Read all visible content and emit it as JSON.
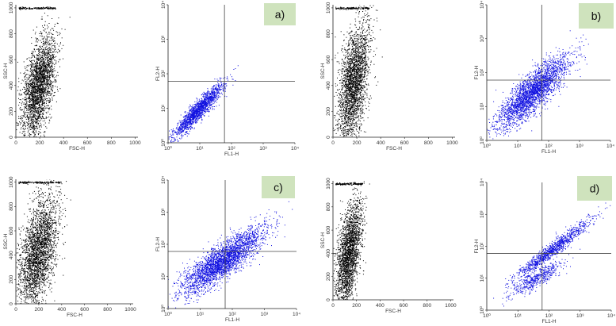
{
  "figure": {
    "colors": {
      "scatter_dots": "#000000",
      "fluorescence_dots": "#1010e0",
      "panel_tag_bg": "#cfe3bd",
      "axes": "#222222"
    }
  },
  "chart_data": [
    {
      "type": "scatter",
      "id": "a-fsc-ssc",
      "xlabel": "FSC-H",
      "ylabel": "SSC-H",
      "xlim": [
        0,
        1024
      ],
      "ylim": [
        0,
        1024
      ],
      "xticks": [
        "0",
        "200",
        "400",
        "600",
        "800",
        "1000"
      ],
      "yticks": [
        "0",
        "200",
        "400",
        "600",
        "800",
        "1000"
      ],
      "scale": "linear",
      "cloud": {
        "center": [
          190,
          400
        ],
        "x_spread": 70,
        "y_spread": 170,
        "slope": 1.6,
        "n": 2600
      },
      "saturation_band": {
        "y": 1000,
        "x_range": [
          20,
          330
        ]
      }
    },
    {
      "type": "scatter",
      "id": "a-fl1-fl2",
      "label": "a)",
      "xlabel": "FL1-H",
      "ylabel": "FL2-H",
      "xlim": [
        1,
        10000
      ],
      "ylim": [
        1,
        10000
      ],
      "xticks": [
        "10⁰",
        "10¹",
        "10²",
        "10³",
        "10⁴"
      ],
      "yticks": [
        "10⁰",
        "10¹",
        "10²",
        "10³",
        "10⁴"
      ],
      "scale": "log",
      "quadrant_gate": {
        "x": 60,
        "y": 60
      },
      "cloud": {
        "center_log": [
          0.95,
          0.95
        ],
        "along_spread": 0.55,
        "across_spread": 0.1,
        "angle_deg": 45,
        "n": 1700
      }
    },
    {
      "type": "scatter",
      "id": "b-fsc-ssc",
      "xlabel": "FSC-H",
      "ylabel": "SSC-H",
      "xlim": [
        0,
        1024
      ],
      "ylim": [
        0,
        1024
      ],
      "xticks": [
        "0",
        "200",
        "400",
        "600",
        "800",
        "1000"
      ],
      "yticks": [
        "0",
        "200",
        "400",
        "600",
        "800",
        "1000"
      ],
      "scale": "linear",
      "cloud": {
        "center": [
          170,
          420
        ],
        "x_spread": 65,
        "y_spread": 200,
        "slope": 2.0,
        "n": 2600
      },
      "saturation_band": {
        "y": 1000,
        "x_range": [
          20,
          300
        ]
      }
    },
    {
      "type": "scatter",
      "id": "b-fl1-fl2",
      "label": "b)",
      "xlabel": "FL1-H",
      "ylabel": "FL2-H",
      "xlim": [
        1,
        10000
      ],
      "ylim": [
        1,
        10000
      ],
      "xticks": [
        "10⁰",
        "10¹",
        "10²",
        "10³",
        "10⁴"
      ],
      "yticks": [
        "10⁰",
        "10¹",
        "10²",
        "10³",
        "10⁴"
      ],
      "scale": "log",
      "quadrant_gate": {
        "x": 60,
        "y": 60
      },
      "cloud": {
        "center_log": [
          1.5,
          1.45
        ],
        "along_spread": 0.75,
        "across_spread": 0.22,
        "angle_deg": 42,
        "n": 2800
      }
    },
    {
      "type": "scatter",
      "id": "c-fsc-ssc",
      "xlabel": "FSC-H",
      "ylabel": "SSC-H",
      "xlim": [
        0,
        1024
      ],
      "ylim": [
        0,
        1024
      ],
      "xticks": [
        "0",
        "200",
        "400",
        "600",
        "800",
        "1000"
      ],
      "yticks": [
        "0",
        "200",
        "400",
        "600",
        "800",
        "1000"
      ],
      "scale": "linear",
      "cloud": {
        "center": [
          190,
          420
        ],
        "x_spread": 85,
        "y_spread": 210,
        "slope": 1.7,
        "n": 2800
      },
      "saturation_band": {
        "y": 1000,
        "x_range": [
          20,
          400
        ]
      }
    },
    {
      "type": "scatter",
      "id": "c-fl1-fl2",
      "label": "c)",
      "xlabel": "FL1-H",
      "ylabel": "FL2-H",
      "xlim": [
        1,
        10000
      ],
      "ylim": [
        1,
        10000
      ],
      "xticks": [
        "10⁰",
        "10¹",
        "10²",
        "10³",
        "10⁴"
      ],
      "yticks": [
        "10⁰",
        "10¹",
        "10²",
        "10³",
        "10⁴"
      ],
      "scale": "log",
      "quadrant_gate": {
        "x": 60,
        "y": 60
      },
      "cloud": {
        "center_log": [
          1.7,
          1.5
        ],
        "along_spread": 0.8,
        "across_spread": 0.22,
        "angle_deg": 38,
        "n": 3000
      }
    },
    {
      "type": "scatter",
      "id": "d-fsc-ssc",
      "xlabel": "FSC-H",
      "ylabel": "SSC-H",
      "xlim": [
        0,
        1024
      ],
      "ylim": [
        0,
        1024
      ],
      "xticks": [
        "0",
        "200",
        "400",
        "600",
        "800",
        "1000"
      ],
      "yticks": [
        "0",
        "200",
        "400",
        "600",
        "800",
        "1000"
      ],
      "scale": "linear",
      "cloud": {
        "center": [
          130,
          380
        ],
        "x_spread": 55,
        "y_spread": 200,
        "slope": 2.5,
        "n": 2400
      },
      "saturation_band": {
        "y": 1000,
        "x_range": [
          20,
          250
        ]
      }
    },
    {
      "type": "scatter",
      "id": "d-fl1-fl2",
      "label": "d)",
      "xlabel": "FL1-H",
      "ylabel": "FL2-H",
      "xlim": [
        1,
        10000
      ],
      "ylim": [
        1,
        10000
      ],
      "xticks": [
        "10⁰",
        "10¹",
        "10²",
        "10³",
        "10⁴"
      ],
      "yticks": [
        "10⁰",
        "10¹",
        "10²",
        "10³",
        "10⁴"
      ],
      "scale": "log",
      "quadrant_gate": {
        "x": 60,
        "y": 60
      },
      "cloud": {
        "center_log": [
          2.1,
          1.9
        ],
        "along_spread": 0.75,
        "across_spread": 0.1,
        "angle_deg": 37,
        "n": 1100
      },
      "secondary_cloud": {
        "center_log": [
          1.6,
          1.0
        ],
        "along_spread": 0.45,
        "across_spread": 0.12,
        "angle_deg": 30,
        "n": 500
      }
    }
  ]
}
